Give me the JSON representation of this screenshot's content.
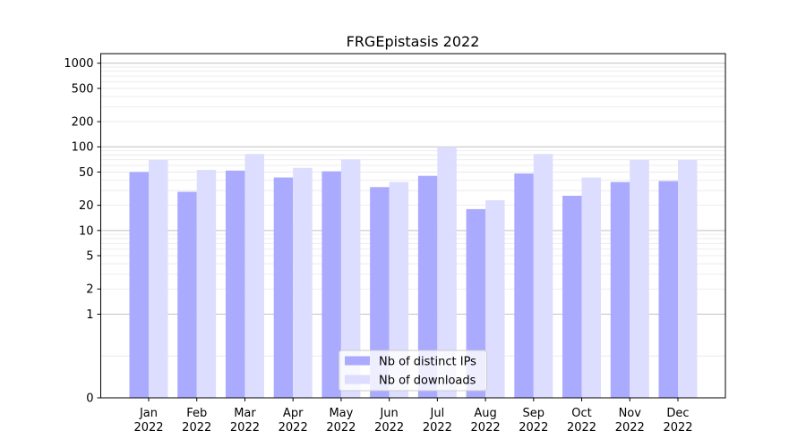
{
  "chart_data": {
    "type": "bar",
    "title": "FRGEpistasis 2022",
    "xlabel": "",
    "ylabel": "",
    "y_scale": "symlog",
    "ylim": [
      0,
      1300
    ],
    "y_ticks": [
      0,
      1,
      2,
      5,
      10,
      20,
      50,
      100,
      200,
      500,
      1000
    ],
    "y_tick_labels": [
      "0",
      "1",
      "2",
      "5",
      "10",
      "20",
      "50",
      "100",
      "200",
      "500",
      "1000"
    ],
    "grid": true,
    "legend_position": "bottom-center",
    "categories": [
      [
        "Jan",
        "2022"
      ],
      [
        "Feb",
        "2022"
      ],
      [
        "Mar",
        "2022"
      ],
      [
        "Apr",
        "2022"
      ],
      [
        "May",
        "2022"
      ],
      [
        "Jun",
        "2022"
      ],
      [
        "Jul",
        "2022"
      ],
      [
        "Aug",
        "2022"
      ],
      [
        "Sep",
        "2022"
      ],
      [
        "Oct",
        "2022"
      ],
      [
        "Nov",
        "2022"
      ],
      [
        "Dec",
        "2022"
      ]
    ],
    "series": [
      {
        "name": "Nb of distinct IPs",
        "color": "#aaaaff",
        "values": [
          50,
          29,
          52,
          43,
          51,
          33,
          45,
          18,
          48,
          26,
          38,
          39
        ]
      },
      {
        "name": "Nb of downloads",
        "color": "#ddddff",
        "values": [
          70,
          53,
          82,
          56,
          71,
          38,
          100,
          23,
          82,
          43,
          70,
          70
        ]
      }
    ]
  }
}
